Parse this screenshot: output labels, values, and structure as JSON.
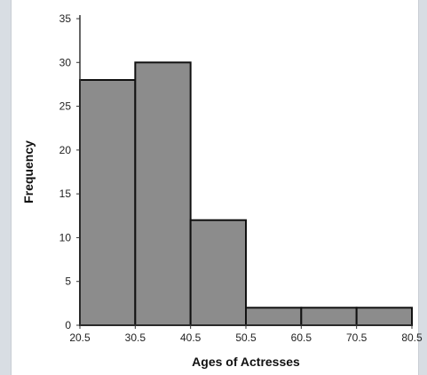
{
  "chart_data": {
    "type": "bar",
    "subtype": "histogram",
    "title": "",
    "xlabel": "Ages of Actresses",
    "ylabel": "Frequency",
    "bin_edges": [
      20.5,
      30.5,
      40.5,
      50.5,
      60.5,
      70.5,
      80.5
    ],
    "x_tick_labels": [
      "20.5",
      "30.5",
      "40.5",
      "50.5",
      "60.5",
      "70.5",
      "80.5"
    ],
    "values": [
      28,
      30,
      12,
      2,
      2,
      2
    ],
    "y_ticks": [
      0,
      5,
      10,
      15,
      20,
      25,
      30,
      35
    ],
    "ylim": [
      0,
      35
    ],
    "xlim": [
      20.5,
      80.5
    ],
    "grid": false,
    "legend": "none",
    "bar_color": "#8c8c8c",
    "bar_edge_color": "#111111",
    "background_color": "#ffffff",
    "page_background_color": "#d8dde3"
  }
}
